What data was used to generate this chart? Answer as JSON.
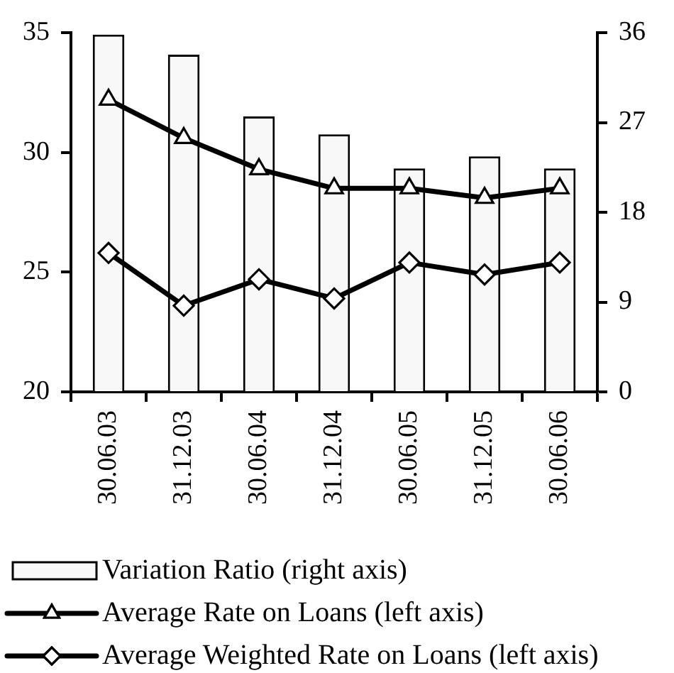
{
  "chart_data": {
    "type": "bar",
    "categories": [
      "30.06.03",
      "31.12.03",
      "30.06.04",
      "31.12.04",
      "30.06.05",
      "31.12.05",
      "30.06.06"
    ],
    "series": [
      {
        "name": "Variation Ratio (right axis)",
        "axis": "y2",
        "color": "#f8f8f8",
        "values": [
          35.8,
          33.8,
          27.6,
          25.8,
          22.4,
          23.6,
          22.4
        ]
      },
      {
        "name": "Average Rate on Loans (left axis)",
        "type": "line",
        "marker": "triangle",
        "color": "#000000",
        "values": [
          32.2,
          30.6,
          29.3,
          28.5,
          28.5,
          28.1,
          28.5
        ]
      },
      {
        "name": "Average Weighted Rate on Loans (left axis)",
        "type": "line",
        "marker": "diamond",
        "color": "#000000",
        "values": [
          25.8,
          23.6,
          24.7,
          23.9,
          25.4,
          24.9,
          25.4
        ]
      }
    ],
    "ylim": [
      20,
      35
    ],
    "yticks": [
      20,
      25,
      30,
      35
    ],
    "y2lim": [
      0,
      36
    ],
    "y2ticks": [
      0,
      9,
      18,
      27,
      36
    ],
    "grid": false,
    "legend": "bottom"
  }
}
